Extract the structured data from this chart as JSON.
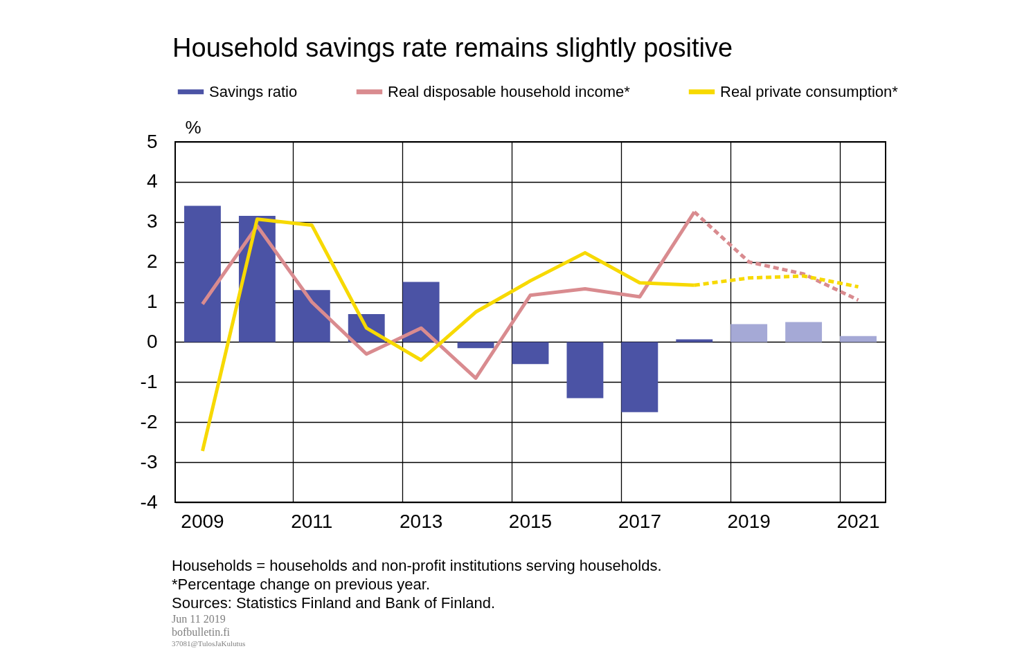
{
  "chart_data": {
    "type": "bar",
    "title": "Household savings rate remains slightly positive",
    "ylabel": "%",
    "categories": [
      "2009",
      null,
      "2011",
      null,
      "2013",
      null,
      "2015",
      null,
      "2017",
      null,
      "2019",
      null,
      "2021"
    ],
    "series": [
      {
        "name": "Savings ratio",
        "colors": [
          "#4b53a5",
          "#4b53a5",
          "#4b53a5",
          "#4b53a5",
          "#4b53a5",
          "#4b53a5",
          "#4b53a5",
          "#4b53a5",
          "#4b53a5",
          "#4b53a5",
          "#a5a9d6",
          "#a5a9d6",
          "#a5a9d6"
        ],
        "values": [
          3.4,
          3.15,
          1.3,
          0.7,
          1.5,
          -0.15,
          -0.55,
          -1.4,
          -1.75,
          0.07,
          0.45,
          0.5,
          0.15
        ]
      },
      {
        "name": "Real disposable household income*",
        "type": "line",
        "color": "#d98b8f",
        "line_style": "solid",
        "values": [
          0.95,
          2.9,
          1.0,
          -0.3,
          0.35,
          -0.9,
          1.17,
          1.33,
          1.13,
          3.25,
          null,
          null,
          null
        ]
      },
      {
        "name": "Real private consumption*",
        "type": "line",
        "color": "#f7d900",
        "line_style": "solid",
        "values": [
          -2.72,
          3.07,
          2.92,
          0.35,
          -0.45,
          0.75,
          1.53,
          2.23,
          1.48,
          1.42,
          null,
          null,
          null
        ]
      },
      {
        "type": "line",
        "color": "#d98b8f",
        "line_style": "dashed",
        "values": [
          null,
          null,
          null,
          null,
          null,
          null,
          null,
          null,
          null,
          3.25,
          2.0,
          1.7,
          1.05
        ]
      },
      {
        "type": "line",
        "color": "#f7d900",
        "line_style": "dashed",
        "values": [
          null,
          null,
          null,
          null,
          null,
          null,
          null,
          null,
          null,
          1.42,
          1.6,
          1.65,
          1.38
        ]
      }
    ],
    "ylim": [
      -4,
      5
    ],
    "yticks": [
      -4,
      -3,
      -2,
      -1,
      0,
      1,
      2,
      3,
      4,
      5
    ],
    "grid": true,
    "legend": "top",
    "annotations": [
      "Households = households and non-profit institutions serving households.",
      "*Percentage change on previous year.",
      "Sources: Statistics Finland and Bank of Finland.",
      "Jun 11 2019",
      "bofbulletin.fi",
      "37081@TulosJaKulutus"
    ]
  }
}
